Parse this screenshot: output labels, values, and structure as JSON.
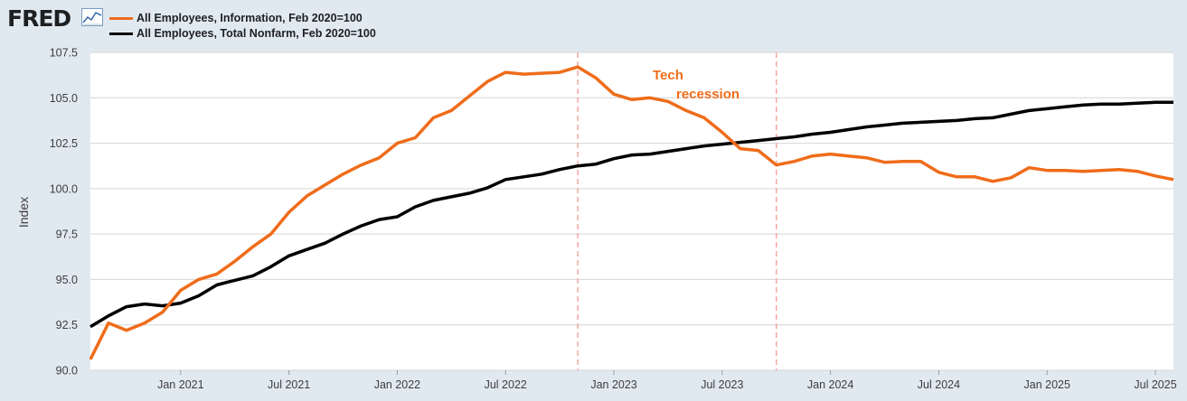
{
  "header": {
    "logo_text": "FRED",
    "logo_icon": "trend-line-icon"
  },
  "colors": {
    "information": "#ef6c1a",
    "nonfarm": "#000000",
    "recession_marker": "#f3a8a2",
    "background": "#e1e9f0",
    "plot_bg": "#ffffff",
    "grid": "#d6d6d6"
  },
  "chart_data": {
    "type": "line",
    "title": "",
    "xlabel": "",
    "ylabel": "Index",
    "ylim": [
      90.0,
      107.5
    ],
    "yticks": [
      "90.0",
      "92.5",
      "95.0",
      "97.5",
      "100.0",
      "102.5",
      "105.0",
      "107.5"
    ],
    "xlim": [
      "2020-08",
      "2025-08"
    ],
    "xticks": [
      {
        "label": "Jan 2021",
        "date": "2021-01"
      },
      {
        "label": "Jul 2021",
        "date": "2021-07"
      },
      {
        "label": "Jan 2022",
        "date": "2022-01"
      },
      {
        "label": "Jul 2022",
        "date": "2022-07"
      },
      {
        "label": "Jan 2023",
        "date": "2023-01"
      },
      {
        "label": "Jul 2023",
        "date": "2023-07"
      },
      {
        "label": "Jan 2024",
        "date": "2024-01"
      },
      {
        "label": "Jul 2024",
        "date": "2024-07"
      },
      {
        "label": "Jan 2025",
        "date": "2025-01"
      },
      {
        "label": "Jul 2025",
        "date": "2025-07"
      }
    ],
    "x": [
      "2020-08",
      "2020-09",
      "2020-10",
      "2020-11",
      "2020-12",
      "2021-01",
      "2021-02",
      "2021-03",
      "2021-04",
      "2021-05",
      "2021-06",
      "2021-07",
      "2021-08",
      "2021-09",
      "2021-10",
      "2021-11",
      "2021-12",
      "2022-01",
      "2022-02",
      "2022-03",
      "2022-04",
      "2022-05",
      "2022-06",
      "2022-07",
      "2022-08",
      "2022-09",
      "2022-10",
      "2022-11",
      "2022-12",
      "2023-01",
      "2023-02",
      "2023-03",
      "2023-04",
      "2023-05",
      "2023-06",
      "2023-07",
      "2023-08",
      "2023-09",
      "2023-10",
      "2023-11",
      "2023-12",
      "2024-01",
      "2024-02",
      "2024-03",
      "2024-04",
      "2024-05",
      "2024-06",
      "2024-07",
      "2024-08",
      "2024-09",
      "2024-10",
      "2024-11",
      "2024-12",
      "2025-01",
      "2025-02",
      "2025-03",
      "2025-04",
      "2025-05",
      "2025-06",
      "2025-07",
      "2025-08"
    ],
    "series": [
      {
        "name": "All Employees, Information, Feb 2020=100",
        "color": "#ef6c1a",
        "values": [
          90.6,
          92.6,
          92.2,
          92.6,
          93.2,
          94.4,
          95.0,
          95.3,
          96.0,
          96.8,
          97.5,
          98.7,
          99.6,
          100.2,
          100.8,
          101.3,
          101.7,
          102.5,
          102.8,
          103.9,
          104.3,
          105.1,
          105.9,
          106.4,
          106.3,
          106.35,
          106.4,
          106.7,
          106.1,
          105.2,
          104.9,
          105.0,
          104.8,
          104.3,
          103.9,
          103.1,
          102.2,
          102.1,
          101.3,
          101.5,
          101.8,
          101.9,
          101.8,
          101.7,
          101.45,
          101.5,
          101.5,
          100.9,
          100.65,
          100.65,
          100.4,
          100.6,
          101.15,
          101.0,
          101.0,
          100.95,
          101.0,
          101.05,
          100.95,
          100.7,
          100.5
        ]
      },
      {
        "name": "All Employees, Total Nonfarm, Feb 2020=100",
        "color": "#000000",
        "values": [
          92.4,
          93.0,
          93.5,
          93.65,
          93.55,
          93.7,
          94.1,
          94.7,
          94.95,
          95.2,
          95.7,
          96.3,
          96.65,
          97.0,
          97.5,
          97.95,
          98.3,
          98.45,
          99.0,
          99.35,
          99.55,
          99.75,
          100.05,
          100.5,
          100.65,
          100.8,
          101.05,
          101.25,
          101.35,
          101.65,
          101.85,
          101.9,
          102.05,
          102.2,
          102.35,
          102.45,
          102.55,
          102.65,
          102.75,
          102.85,
          103.0,
          103.1,
          103.25,
          103.4,
          103.5,
          103.6,
          103.65,
          103.7,
          103.75,
          103.85,
          103.9,
          104.1,
          104.3,
          104.4,
          104.5,
          104.6,
          104.65,
          104.65,
          104.7,
          104.75,
          104.75
        ]
      }
    ],
    "markers": [
      {
        "date": "2022-11",
        "style": "dashed"
      },
      {
        "date": "2023-10",
        "style": "dashed"
      }
    ],
    "annotation": {
      "line1": "Tech",
      "line2": "recession"
    }
  }
}
